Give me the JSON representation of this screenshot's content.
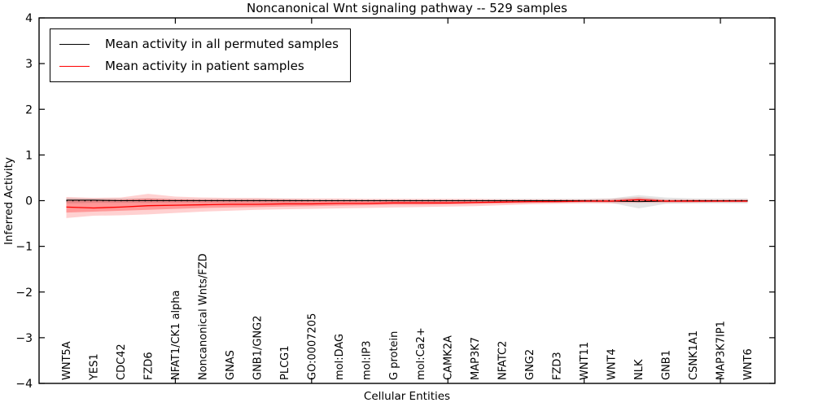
{
  "chart_data": {
    "type": "line",
    "title": "Noncanonical Wnt signaling pathway -- 529 samples",
    "xlabel": "Cellular Entities",
    "ylabel": "Inferred Activity",
    "ylim": [
      -4,
      4
    ],
    "yticks": [
      4,
      3,
      2,
      1,
      0,
      -1,
      -2,
      -3,
      -4
    ],
    "xlim": [
      0,
      27
    ],
    "xticks": [
      5,
      10,
      15,
      20,
      25
    ],
    "grid": false,
    "legend_position": "upper left",
    "categories": [
      "WNT5A",
      "YES1",
      "CDC42",
      "FZD6",
      "NFAT1/CK1 alpha",
      "Noncanonical Wnts/FZD",
      "GNAS",
      "GNB1/GNG2",
      "PLCG1",
      "GO:0007205",
      "mol:DAG",
      "mol:IP3",
      "G protein",
      "mol:Ca2+",
      "CAMK2A",
      "MAP3K7",
      "NFATC2",
      "GNG2",
      "FZD3",
      "WNT11",
      "WNT4",
      "NLK",
      "GNB1",
      "CSNK1A1",
      "MAP3K7IP1",
      "WNT6"
    ],
    "series": [
      {
        "name": "Mean activity in all permuted samples",
        "color": "#000000",
        "values": [
          0.01,
          0.01,
          0.0,
          0.0,
          0.0,
          0.0,
          0.0,
          0.0,
          0.0,
          0.0,
          0.0,
          0.0,
          0.0,
          0.0,
          0.0,
          0.0,
          0.0,
          0.0,
          0.0,
          0.0,
          -0.01,
          -0.02,
          -0.01,
          0.0,
          0.0,
          0.0
        ]
      },
      {
        "name": "Mean activity in patient samples",
        "color": "#ff0000",
        "values": [
          -0.14,
          -0.16,
          -0.14,
          -0.11,
          -0.1,
          -0.09,
          -0.08,
          -0.08,
          -0.07,
          -0.07,
          -0.06,
          -0.06,
          -0.05,
          -0.05,
          -0.05,
          -0.04,
          -0.03,
          -0.02,
          -0.02,
          -0.01,
          -0.01,
          0.02,
          -0.01,
          -0.01,
          -0.01,
          -0.01
        ]
      }
    ],
    "bands": [
      {
        "name": "patient-band-outer",
        "color": "#ff0000",
        "opacity": 0.18,
        "upper": [
          0.08,
          0.06,
          0.07,
          0.15,
          0.09,
          0.07,
          0.06,
          0.06,
          0.05,
          0.05,
          0.05,
          0.04,
          0.04,
          0.04,
          0.04,
          0.04,
          0.03,
          0.03,
          0.03,
          0.03,
          0.04,
          0.08,
          0.03,
          0.03,
          0.02,
          0.03
        ],
        "lower": [
          -0.38,
          -0.33,
          -0.32,
          -0.3,
          -0.27,
          -0.24,
          -0.22,
          -0.2,
          -0.19,
          -0.18,
          -0.17,
          -0.16,
          -0.15,
          -0.14,
          -0.13,
          -0.12,
          -0.1,
          -0.08,
          -0.07,
          -0.06,
          -0.06,
          -0.05,
          -0.05,
          -0.05,
          -0.04,
          -0.04
        ]
      },
      {
        "name": "patient-band-inner",
        "color": "#ff0000",
        "opacity": 0.28,
        "upper": [
          0.02,
          0.02,
          0.02,
          0.05,
          0.03,
          0.02,
          0.02,
          0.02,
          0.02,
          0.01,
          0.01,
          0.01,
          0.01,
          0.01,
          0.01,
          0.01,
          0.01,
          0.01,
          0.01,
          0.01,
          0.01,
          0.05,
          0.01,
          0.01,
          0.01,
          0.01
        ],
        "lower": [
          -0.26,
          -0.24,
          -0.22,
          -0.2,
          -0.18,
          -0.16,
          -0.15,
          -0.14,
          -0.13,
          -0.12,
          -0.11,
          -0.1,
          -0.09,
          -0.09,
          -0.08,
          -0.07,
          -0.06,
          -0.05,
          -0.04,
          -0.03,
          -0.03,
          -0.02,
          -0.03,
          -0.03,
          -0.02,
          -0.02
        ]
      },
      {
        "name": "permuted-band",
        "color": "#000000",
        "opacity": 0.1,
        "upper": [
          0.06,
          0.05,
          0.05,
          0.05,
          0.04,
          0.04,
          0.04,
          0.04,
          0.04,
          0.03,
          0.03,
          0.03,
          0.03,
          0.03,
          0.03,
          0.03,
          0.04,
          0.04,
          0.04,
          0.04,
          0.05,
          0.12,
          0.07,
          0.05,
          0.05,
          0.05
        ],
        "lower": [
          -0.06,
          -0.05,
          -0.05,
          -0.05,
          -0.04,
          -0.04,
          -0.04,
          -0.04,
          -0.04,
          -0.03,
          -0.03,
          -0.03,
          -0.03,
          -0.03,
          -0.03,
          -0.03,
          -0.04,
          -0.04,
          -0.04,
          -0.04,
          -0.05,
          -0.17,
          -0.07,
          -0.06,
          -0.06,
          -0.06
        ]
      }
    ],
    "zero_line": {
      "style": "dotted",
      "color": "#000000"
    },
    "legend": {
      "entries": [
        {
          "label": "Mean activity in all permuted samples",
          "color": "#000000"
        },
        {
          "label": "Mean activity in patient samples",
          "color": "#ff0000"
        }
      ]
    }
  }
}
